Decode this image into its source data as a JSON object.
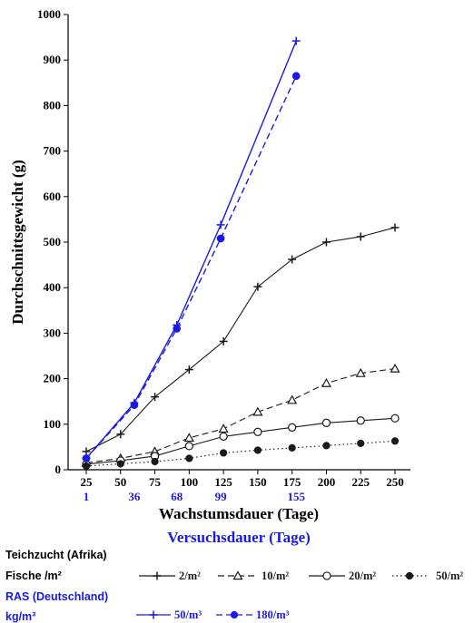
{
  "colors": {
    "black": "#1a1a1a",
    "blue": "#1a1ae6",
    "axis": "#000000"
  },
  "chart_data": {
    "type": "line",
    "ylabel": "Durchschnittsgewicht (g)",
    "xlabel": "Wachstumsdauer (Tage)",
    "xlabel_secondary": "Versuchsdauer (Tage)",
    "ylim": [
      0,
      1000
    ],
    "xlim": [
      20,
      255
    ],
    "y_ticks": [
      "0",
      "100",
      "200",
      "300",
      "400",
      "500",
      "600",
      "700",
      "800",
      "900",
      "1000"
    ],
    "x_ticks": [
      "25",
      "50",
      "75",
      "100",
      "125",
      "150",
      "175",
      "200",
      "225",
      "250"
    ],
    "x_ticks_secondary": [
      "1",
      "36",
      "68",
      "99",
      "155"
    ],
    "legend": {
      "group1_title": "Teichzucht (Afrika)",
      "group1_unit": "Fische /m²",
      "group2_title": "RAS (Deutschland)",
      "group2_unit": "kg/m³"
    },
    "series": [
      {
        "name": "2/m²",
        "group": "Teichzucht (Afrika)",
        "color": "#1a1a1a",
        "line": "solid",
        "marker": "plus",
        "x": [
          25,
          50,
          75,
          100,
          125,
          150,
          175,
          200,
          225,
          250
        ],
        "y": [
          40,
          78,
          160,
          220,
          282,
          402,
          462,
          500,
          512,
          532
        ]
      },
      {
        "name": "10/m²",
        "group": "Teichzucht (Afrika)",
        "color": "#1a1a1a",
        "line": "dashed",
        "marker": "triangle",
        "x": [
          25,
          50,
          75,
          100,
          125,
          150,
          175,
          200,
          225,
          250
        ],
        "y": [
          15,
          25,
          40,
          70,
          90,
          127,
          153,
          190,
          212,
          222
        ]
      },
      {
        "name": "20/m²",
        "group": "Teichzucht (Afrika)",
        "color": "#1a1a1a",
        "line": "solid",
        "marker": "circle-open",
        "x": [
          25,
          50,
          75,
          100,
          125,
          150,
          175,
          200,
          225,
          250
        ],
        "y": [
          12,
          20,
          30,
          52,
          73,
          83,
          93,
          103,
          108,
          113
        ]
      },
      {
        "name": "50/m²",
        "group": "Teichzucht (Afrika)",
        "color": "#1a1a1a",
        "line": "dotted",
        "marker": "circle-filled",
        "x": [
          25,
          50,
          75,
          100,
          125,
          150,
          175,
          200,
          225,
          250
        ],
        "y": [
          8,
          13,
          18,
          25,
          37,
          43,
          48,
          53,
          58,
          63
        ]
      },
      {
        "name": "50/m³",
        "group": "RAS (Deutschland)",
        "color": "#1a1ae6",
        "line": "solid",
        "marker": "plus",
        "x": [
          25,
          60,
          91,
          123,
          178
        ],
        "y": [
          25,
          147,
          318,
          538,
          942
        ]
      },
      {
        "name": "180/m³",
        "group": "RAS (Deutschland)",
        "color": "#1a1ae6",
        "line": "dashed",
        "marker": "circle-filled",
        "x": [
          25,
          60,
          91,
          123,
          178
        ],
        "y": [
          25,
          142,
          310,
          508,
          865
        ]
      }
    ]
  }
}
